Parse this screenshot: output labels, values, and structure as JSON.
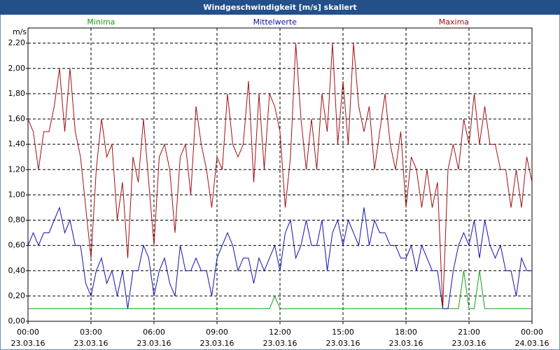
{
  "chart_data": {
    "type": "line",
    "title": "Windgeschwindigkeit [m/s] skaliert",
    "y_label": "m/s",
    "x": [
      0,
      15,
      30,
      45,
      60,
      75,
      90,
      105,
      120,
      135,
      150,
      165,
      180,
      195,
      210,
      225,
      240,
      255,
      270,
      285,
      300,
      315,
      330,
      345,
      360,
      375,
      390,
      405,
      420,
      435,
      450,
      465,
      480,
      495,
      510,
      525,
      540,
      555,
      570,
      585,
      600,
      615,
      630,
      645,
      660,
      675,
      690,
      705,
      720,
      735,
      750,
      765,
      780,
      795,
      810,
      825,
      840,
      855,
      870,
      885,
      900,
      915,
      930,
      945,
      960,
      975,
      990,
      1005,
      1020,
      1035,
      1050,
      1065,
      1080,
      1095,
      1110,
      1125,
      1140,
      1155,
      1170,
      1185,
      1200,
      1215,
      1230,
      1245,
      1260,
      1275,
      1290,
      1305,
      1320,
      1335,
      1350,
      1365,
      1380,
      1395,
      1410,
      1425,
      1440
    ],
    "series": [
      {
        "name": "Minima",
        "color": "#10a010",
        "values": [
          0.1,
          0.1,
          0.1,
          0.1,
          0.1,
          0.1,
          0.1,
          0.1,
          0.1,
          0.1,
          0.1,
          0.1,
          0.1,
          0.1,
          0.1,
          0.1,
          0.1,
          0.1,
          0.1,
          0.1,
          0.1,
          0.1,
          0.1,
          0.1,
          0.1,
          0.1,
          0.1,
          0.1,
          0.1,
          0.1,
          0.1,
          0.1,
          0.1,
          0.1,
          0.1,
          0.1,
          0.1,
          0.1,
          0.1,
          0.1,
          0.1,
          0.1,
          0.1,
          0.1,
          0.1,
          0.1,
          0.1,
          0.2,
          0.1,
          0.1,
          0.1,
          0.1,
          0.1,
          0.1,
          0.1,
          0.1,
          0.1,
          0.1,
          0.1,
          0.1,
          0.1,
          0.1,
          0.1,
          0.1,
          0.1,
          0.1,
          0.1,
          0.1,
          0.1,
          0.1,
          0.1,
          0.1,
          0.1,
          0.1,
          0.1,
          0.1,
          0.1,
          0.1,
          0.1,
          0.1,
          0.1,
          0.1,
          0.1,
          0.4,
          0.1,
          0.1,
          0.4,
          0.1,
          0.1,
          0.1,
          0.1,
          0.1,
          0.1,
          0.1,
          0.1,
          0.1,
          0.1
        ]
      },
      {
        "name": "Mittelwerte",
        "color": "#1010b0",
        "values": [
          0.6,
          0.7,
          0.6,
          0.7,
          0.7,
          0.8,
          0.9,
          0.7,
          0.8,
          0.6,
          0.6,
          0.3,
          0.2,
          0.4,
          0.5,
          0.3,
          0.4,
          0.2,
          0.4,
          0.1,
          0.4,
          0.4,
          0.6,
          0.5,
          0.2,
          0.4,
          0.5,
          0.3,
          0.2,
          0.6,
          0.4,
          0.4,
          0.5,
          0.4,
          0.4,
          0.2,
          0.5,
          0.6,
          0.7,
          0.6,
          0.4,
          0.5,
          0.5,
          0.3,
          0.5,
          0.4,
          0.5,
          0.6,
          0.4,
          0.7,
          0.8,
          0.5,
          0.6,
          0.8,
          0.6,
          0.6,
          0.8,
          0.4,
          0.7,
          0.8,
          0.6,
          0.8,
          0.7,
          0.6,
          0.9,
          0.6,
          0.8,
          0.7,
          0.7,
          0.6,
          0.6,
          0.5,
          0.5,
          0.6,
          0.4,
          0.6,
          0.5,
          0.4,
          0.4,
          0.1,
          0.1,
          0.4,
          0.6,
          0.7,
          0.6,
          0.8,
          0.5,
          0.8,
          0.6,
          0.5,
          0.6,
          0.4,
          0.4,
          0.2,
          0.5,
          0.4,
          0.4
        ]
      },
      {
        "name": "Maxima",
        "color": "#a01010",
        "values": [
          1.6,
          1.5,
          1.2,
          1.5,
          1.5,
          1.7,
          2.0,
          1.5,
          2.0,
          1.5,
          1.3,
          0.9,
          0.5,
          1.2,
          1.6,
          1.3,
          1.4,
          0.8,
          1.1,
          0.5,
          1.3,
          1.1,
          1.6,
          1.1,
          0.6,
          1.3,
          1.4,
          1.2,
          0.7,
          1.3,
          1.4,
          1.0,
          1.7,
          1.4,
          1.2,
          0.9,
          1.3,
          1.2,
          1.8,
          1.4,
          1.3,
          1.4,
          1.9,
          1.1,
          1.8,
          1.2,
          1.8,
          1.7,
          1.5,
          0.9,
          1.3,
          2.2,
          1.6,
          1.2,
          1.6,
          1.2,
          1.8,
          1.5,
          2.2,
          1.4,
          1.9,
          1.4,
          2.2,
          1.7,
          1.5,
          1.7,
          1.2,
          1.5,
          1.8,
          1.4,
          1.2,
          1.5,
          0.9,
          1.3,
          1.2,
          0.9,
          1.2,
          0.9,
          1.1,
          0.1,
          1.2,
          1.4,
          1.2,
          1.6,
          1.4,
          1.8,
          1.4,
          1.7,
          1.4,
          1.4,
          1.2,
          1.2,
          0.9,
          1.2,
          0.9,
          1.3,
          1.1
        ]
      }
    ],
    "xlim": [
      0,
      1440
    ],
    "xticks": [
      {
        "value": 0,
        "label": "00:00 23.03.16"
      },
      {
        "value": 180,
        "label": "03:00 23.03.16"
      },
      {
        "value": 360,
        "label": "06:00 23.03.16"
      },
      {
        "value": 540,
        "label": "09:00 23.03.16"
      },
      {
        "value": 720,
        "label": "12:00 23.03.16"
      },
      {
        "value": 900,
        "label": "15:00 23.03.16"
      },
      {
        "value": 1080,
        "label": "18:00 23.03.16"
      },
      {
        "value": 1260,
        "label": "21:00 23.03.16"
      },
      {
        "value": 1440,
        "label": "00:00 24.03.16"
      }
    ],
    "ylim": [
      0,
      2.32
    ],
    "yticks": [
      {
        "value": 0,
        "label": "0,00"
      },
      {
        "value": 0.2,
        "label": "0,20"
      },
      {
        "value": 0.4,
        "label": "0,40"
      },
      {
        "value": 0.6,
        "label": "0,60"
      },
      {
        "value": 0.8,
        "label": "0,80"
      },
      {
        "value": 1.0,
        "label": "1,00"
      },
      {
        "value": 1.2,
        "label": "1,20"
      },
      {
        "value": 1.4,
        "label": "1,40"
      },
      {
        "value": 1.6,
        "label": "1,60"
      },
      {
        "value": 1.8,
        "label": "1,80"
      },
      {
        "value": 2.0,
        "label": "2,00"
      },
      {
        "value": 2.2,
        "label": "2,20"
      }
    ],
    "grid": true
  }
}
